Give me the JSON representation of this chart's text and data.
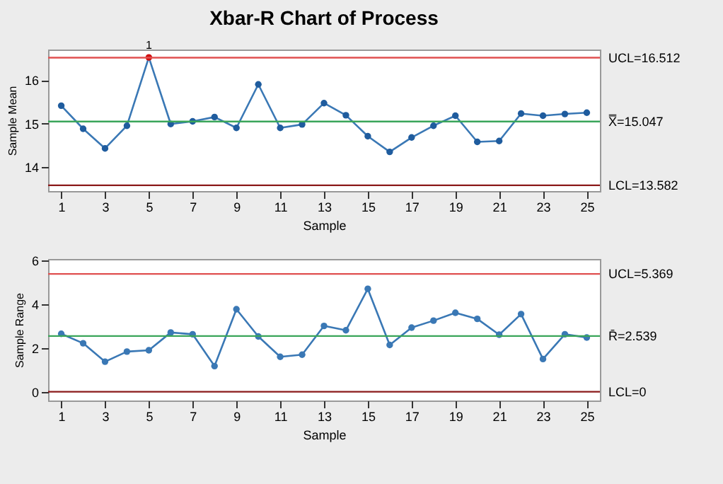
{
  "chart_data": [
    {
      "type": "line",
      "title": "Xbar-R Chart of Process",
      "xlabel": "Sample",
      "ylabel": "Sample Mean",
      "x": [
        1,
        2,
        3,
        4,
        5,
        6,
        7,
        8,
        9,
        10,
        11,
        12,
        13,
        14,
        15,
        16,
        17,
        18,
        19,
        20,
        21,
        22,
        23,
        24,
        25
      ],
      "series": [
        {
          "color": "#3a78b5",
          "colors": [
            "#1f5c9e",
            "#1f5c9e",
            "#1f5c9e",
            "#1f5c9e",
            "#d01010",
            "#1f5c9e",
            "#1f5c9e",
            "#1f5c9e",
            "#1f5c9e",
            "#1f5c9e",
            "#1f5c9e",
            "#1f5c9e",
            "#1f5c9e",
            "#1f5c9e",
            "#1f5c9e",
            "#1f5c9e",
            "#1f5c9e",
            "#1f5c9e",
            "#1f5c9e",
            "#1f5c9e",
            "#1f5c9e",
            "#1f5c9e",
            "#1f5c9e",
            "#1f5c9e",
            "#1f5c9e"
          ],
          "values": [
            15.41,
            14.88,
            14.43,
            14.95,
            16.52,
            14.99,
            15.05,
            15.15,
            14.9,
            15.9,
            14.9,
            14.98,
            15.47,
            15.19,
            14.71,
            14.35,
            14.68,
            14.95,
            15.18,
            14.58,
            14.6,
            15.23,
            15.18,
            15.22,
            15.25
          ]
        }
      ],
      "xlim": [
        0.4,
        25.6
      ],
      "xticks": [
        1,
        3,
        5,
        7,
        9,
        11,
        13,
        15,
        17,
        19,
        21,
        23,
        25
      ],
      "ylim": [
        13.45,
        16.7
      ],
      "yticks": [
        14,
        15,
        16
      ],
      "ref_lines": [
        {
          "axis": "y",
          "value": 16.512,
          "label": "UCL=16.512",
          "color": "#e05050"
        },
        {
          "axis": "y",
          "value": 15.047,
          "label": "X̿=15.047",
          "color": "#3aa55a"
        },
        {
          "axis": "y",
          "value": 13.582,
          "label": "LCL=13.582",
          "color": "#8b1a1a"
        }
      ],
      "annotations": [
        {
          "text": "1",
          "x": 5,
          "y": 16.52
        }
      ],
      "marker": "circle",
      "grid": false
    },
    {
      "type": "line",
      "xlabel": "Sample",
      "ylabel": "Sample Range",
      "x": [
        1,
        2,
        3,
        4,
        5,
        6,
        7,
        8,
        9,
        10,
        11,
        12,
        13,
        14,
        15,
        16,
        17,
        18,
        19,
        20,
        21,
        22,
        23,
        24,
        25
      ],
      "series": [
        {
          "color": "#3a78b5",
          "values": [
            2.64,
            2.21,
            1.37,
            1.83,
            1.89,
            2.7,
            2.62,
            1.17,
            3.76,
            2.52,
            1.59,
            1.69,
            3.0,
            2.8,
            4.69,
            2.13,
            2.92,
            3.24,
            3.6,
            3.32,
            2.6,
            3.54,
            1.49,
            2.62,
            2.47
          ]
        }
      ],
      "xlim": [
        0.4,
        25.6
      ],
      "xticks": [
        1,
        3,
        5,
        7,
        9,
        11,
        13,
        15,
        17,
        19,
        21,
        23,
        25
      ],
      "ylim": [
        -0.4,
        6.05
      ],
      "yticks": [
        0,
        2,
        4,
        6
      ],
      "ref_lines": [
        {
          "axis": "y",
          "value": 5.369,
          "label": "UCL=5.369",
          "color": "#e05050"
        },
        {
          "axis": "y",
          "value": 2.539,
          "label": "R̄=2.539",
          "color": "#3aa55a"
        },
        {
          "axis": "y",
          "value": 0,
          "label": "LCL=0",
          "color": "#8b1a1a"
        }
      ],
      "marker": "circle",
      "grid": false
    }
  ]
}
